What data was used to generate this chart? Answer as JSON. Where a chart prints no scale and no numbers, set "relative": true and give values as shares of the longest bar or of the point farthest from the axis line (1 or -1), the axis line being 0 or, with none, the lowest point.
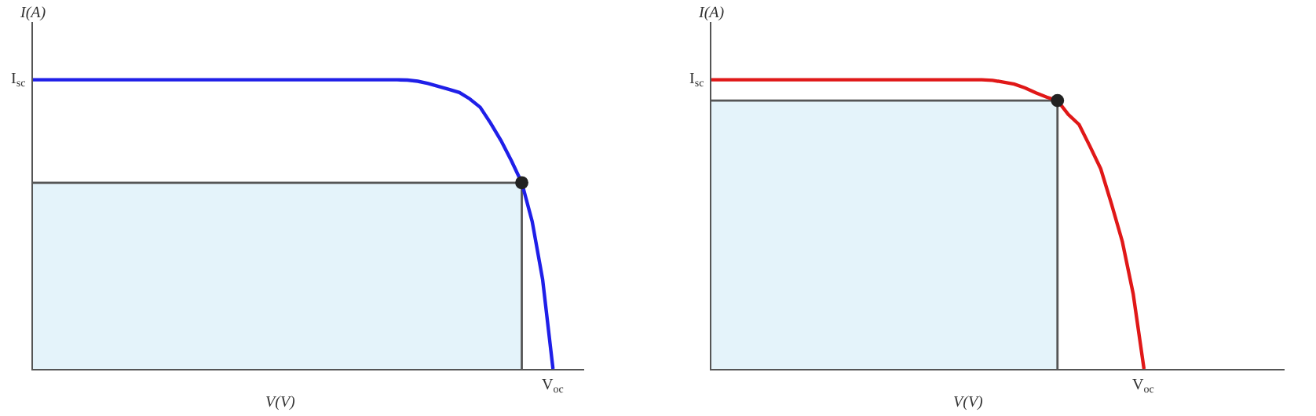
{
  "chart_data": [
    {
      "type": "line",
      "relative": true,
      "xlabel": "V(V)",
      "ylabel": "I(A)",
      "annotations": [
        "I$_{sc}$",
        "V$_{oc}$"
      ],
      "categories": [
        null,
        null,
        null,
        null,
        null,
        null,
        null,
        null,
        null,
        null,
        null,
        null,
        null,
        null,
        null,
        null,
        null,
        null,
        null,
        null,
        null,
        null,
        null,
        null,
        null,
        null,
        null,
        null,
        null,
        null,
        null,
        null,
        null,
        null,
        null,
        null,
        null,
        null,
        null,
        null,
        null,
        null,
        null,
        null,
        null,
        null,
        null,
        null,
        null,
        null,
        null,
        null,
        null,
        null
      ],
      "ref_lines": [
        {
          "axis": "y",
          "value": 0.644,
          "color": "#555555"
        }
      ],
      "bands": [
        {
          "axis": "y",
          "from": 0,
          "to": 0.644,
          "color": "#e4f3fa"
        }
      ],
      "series": [
        {
          "color": "#1f1fe8",
          "values": [
            1,
            1,
            1,
            1,
            1,
            1,
            1,
            1,
            1,
            1,
            1,
            1,
            1,
            1,
            1,
            1,
            1,
            1,
            1,
            1,
            1,
            1,
            1,
            1,
            1,
            1,
            1,
            1,
            1,
            1,
            1,
            1,
            1,
            1,
            1,
            1,
            0.999,
            0.995,
            0.987,
            0.977,
            0.967,
            0.956,
            0.934,
            0.905,
            0.85,
            0.79,
            0.72,
            0.644,
            0.51,
            0.31,
            0,
            null,
            null,
            null
          ]
        }
      ]
    },
    {
      "type": "line",
      "relative": true,
      "xlabel": "V(V)",
      "ylabel": "I(A)",
      "annotations": [
        "I$_{sc}$",
        "V$_{oc}$"
      ],
      "categories": [
        null,
        null,
        null,
        null,
        null,
        null,
        null,
        null,
        null,
        null,
        null,
        null,
        null,
        null,
        null,
        null,
        null,
        null,
        null,
        null,
        null,
        null,
        null,
        null,
        null,
        null,
        null,
        null,
        null,
        null,
        null,
        null,
        null,
        null,
        null,
        null,
        null,
        null,
        null,
        null,
        null,
        null,
        null,
        null,
        null,
        null,
        null,
        null,
        null,
        null,
        null,
        null,
        null,
        null
      ],
      "ref_lines": [
        {
          "axis": "y",
          "value": 0.928,
          "color": "#555555"
        }
      ],
      "bands": [
        {
          "axis": "y",
          "from": 0,
          "to": 0.928,
          "color": "#e4f3fa"
        }
      ],
      "series": [
        {
          "color": "#e01818",
          "values": [
            1,
            1,
            1,
            1,
            1,
            1,
            1,
            1,
            1,
            1,
            1,
            1,
            1,
            1,
            1,
            1,
            1,
            1,
            1,
            1,
            1,
            1,
            1,
            1,
            1,
            1,
            0.998,
            0.992,
            0.985,
            0.972,
            0.955,
            0.94,
            0.928,
            0.88,
            0.845,
            0.77,
            0.692,
            0.57,
            0.44,
            0.26,
            0,
            null,
            null,
            null,
            null,
            null,
            null,
            null,
            null,
            null,
            null,
            null,
            null,
            null
          ]
        }
      ]
    }
  ]
}
